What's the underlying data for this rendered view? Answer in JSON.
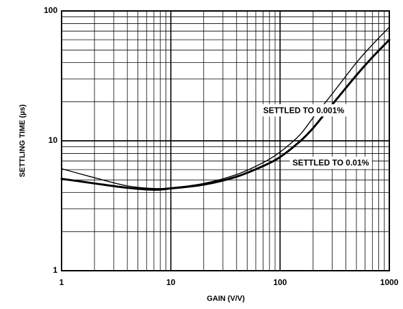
{
  "chart_data": {
    "type": "line",
    "xlabel": "GAIN (V/V)",
    "ylabel": "SETTLING TIME (µs)",
    "x_scale": "log",
    "y_scale": "log",
    "xlim": [
      1,
      1000
    ],
    "ylim": [
      1,
      100
    ],
    "x_ticks": [
      "1",
      "10",
      "100",
      "1000"
    ],
    "y_ticks": [
      "1",
      "10",
      "100"
    ],
    "grid": true,
    "series": [
      {
        "name": "SETTLED TO 0.001%",
        "line": "thin",
        "points": [
          [
            1,
            6.1
          ],
          [
            2,
            5.2
          ],
          [
            4,
            4.5
          ],
          [
            7,
            4.3
          ],
          [
            10,
            4.35
          ],
          [
            20,
            4.7
          ],
          [
            40,
            5.5
          ],
          [
            70,
            6.8
          ],
          [
            100,
            8.2
          ],
          [
            150,
            11
          ],
          [
            200,
            15
          ],
          [
            300,
            23
          ],
          [
            500,
            40
          ],
          [
            700,
            55
          ],
          [
            1000,
            75
          ]
        ]
      },
      {
        "name": "SETTLED TO 0.01%",
        "line": "thick",
        "points": [
          [
            1,
            5.1
          ],
          [
            2,
            4.7
          ],
          [
            4,
            4.35
          ],
          [
            7,
            4.2
          ],
          [
            10,
            4.3
          ],
          [
            20,
            4.6
          ],
          [
            40,
            5.3
          ],
          [
            70,
            6.4
          ],
          [
            100,
            7.5
          ],
          [
            150,
            9.8
          ],
          [
            200,
            12.5
          ],
          [
            300,
            19
          ],
          [
            500,
            32
          ],
          [
            700,
            44
          ],
          [
            1000,
            60
          ]
        ]
      }
    ],
    "annotations": [
      {
        "text": "SETTLED TO 0.001%",
        "x": 70,
        "y": 17
      },
      {
        "text": "SETTLED TO 0.01%",
        "x": 130,
        "y": 6.7
      }
    ]
  }
}
